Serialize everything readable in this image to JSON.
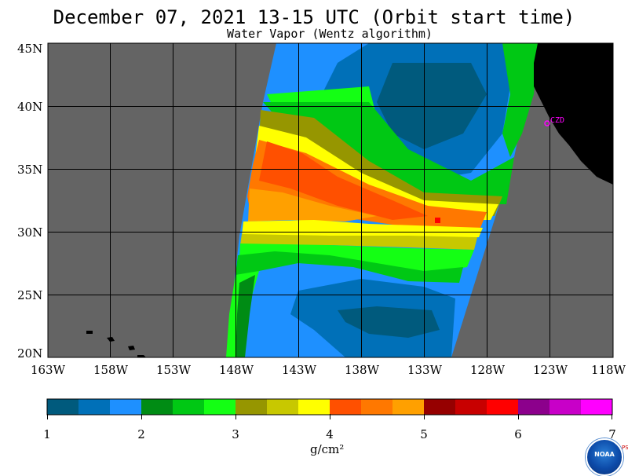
{
  "title": "December 07, 2021  13-15 UTC  (Orbit start time)",
  "subtitle": "Water Vapor (Wentz algorithm)",
  "map": {
    "lat_labels": [
      "45N",
      "40N",
      "35N",
      "30N",
      "25N",
      "20N"
    ],
    "lon_labels": [
      "163W",
      "158W",
      "153W",
      "148W",
      "143W",
      "138W",
      "133W",
      "128W",
      "123W",
      "118W"
    ],
    "station_label": "CZD",
    "colors": {
      "no_data": "#646464",
      "land": "#000000",
      "station": "#ff00ff",
      "grid": "#000000"
    }
  },
  "colorbar": {
    "unit": "g/cm²",
    "tick_labels": [
      "1",
      "2",
      "3",
      "4",
      "5",
      "6",
      "7"
    ],
    "colors": [
      "#005a7d",
      "#0070b8",
      "#1e90ff",
      "#008c14",
      "#00c814",
      "#14ff14",
      "#969600",
      "#c8c800",
      "#ffff00",
      "#ff5000",
      "#ff7800",
      "#ffa000",
      "#960000",
      "#c80000",
      "#ff0000",
      "#8c008c",
      "#c800c8",
      "#ff00ff"
    ]
  },
  "logo": {
    "text": "NOAA",
    "side_text": "PSL"
  }
}
